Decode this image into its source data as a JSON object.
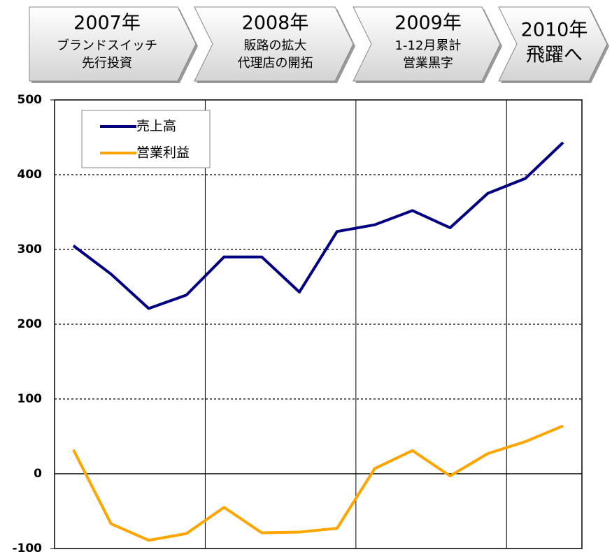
{
  "banners": [
    {
      "year": "2007年",
      "lines": [
        "ブランドスイッチ",
        "先行投資"
      ]
    },
    {
      "year": "2008年",
      "lines": [
        "販路の拡大",
        "代理店の開拓"
      ]
    },
    {
      "year": "2009年",
      "lines": [
        "1-12月累計",
        "営業黒字"
      ]
    },
    {
      "year": "2010年",
      "lines": [
        "飛躍へ"
      ]
    }
  ],
  "chart_data": {
    "type": "line",
    "series": [
      {
        "name": "売上高",
        "color": "#000080",
        "values": [
          305,
          267,
          221,
          239,
          290,
          290,
          243,
          324,
          333,
          352,
          329,
          375,
          395,
          443
        ]
      },
      {
        "name": "営業利益",
        "color": "#ffa500",
        "values": [
          32,
          -67,
          -89,
          -80,
          -45,
          -79,
          -78,
          -73,
          7,
          31,
          -3,
          27,
          43,
          64
        ]
      }
    ],
    "ylim": [
      -100,
      500
    ],
    "yticks": [
      -100,
      0,
      100,
      200,
      300,
      400,
      500
    ],
    "grid": true
  }
}
